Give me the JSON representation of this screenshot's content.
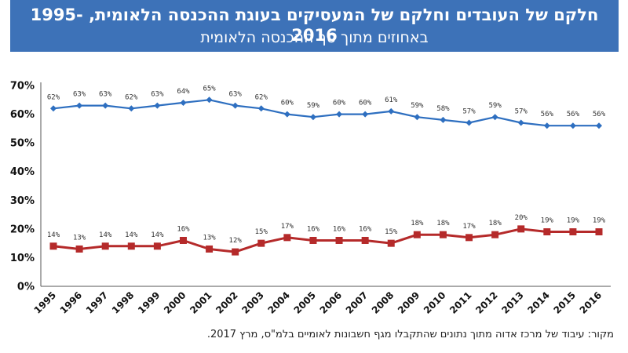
{
  "header": {
    "title": "חלקם של העובדים וחלקם של המעסיקים בעוגת ההכנסה הלאומית, 1995-2016",
    "subtitle": "באחוזים מתוך סך ההכנסה הלאומית"
  },
  "source": "מקור: עיבוד של מרכז אדוה מתוך נתונים שהתקבלו מגף חשבונות לאומיים בלמ\"ס, מרץ 2017.",
  "colors": {
    "banner": "#3d72b8",
    "blue_series": "#2e6fc0",
    "red_series": "#b52a2a"
  },
  "chart_data": {
    "type": "line",
    "title": "",
    "xlabel": "",
    "ylabel": "",
    "ylim": [
      0,
      70
    ],
    "yticks": [
      "0%",
      "10%",
      "20%",
      "30%",
      "40%",
      "50%",
      "60%",
      "70%"
    ],
    "grid": false,
    "legend": "none",
    "categories": [
      "1995",
      "1996",
      "1997",
      "1998",
      "1999",
      "2000",
      "2001",
      "2002",
      "2003",
      "2004",
      "2005",
      "2006",
      "2007",
      "2008",
      "2009",
      "2010",
      "2011",
      "2012",
      "2013",
      "2014",
      "2015",
      "2016"
    ],
    "series": [
      {
        "values": [
          62,
          63,
          63,
          62,
          63,
          64,
          65,
          63,
          62,
          60,
          59,
          60,
          60,
          61,
          59,
          58,
          57,
          59,
          57,
          56,
          56,
          56
        ],
        "labels": [
          "62%",
          "63%",
          "63%",
          "62%",
          "63%",
          "64%",
          "65%",
          "63%",
          "62%",
          "60%",
          "59%",
          "60%",
          "60%",
          "61%",
          "59%",
          "58%",
          "57%",
          "59%",
          "57%",
          "56%",
          "56%",
          "56%"
        ],
        "color": "#2e6fc0",
        "marker": "diamond"
      },
      {
        "values": [
          14,
          13,
          14,
          14,
          14,
          16,
          13,
          12,
          15,
          17,
          16,
          16,
          16,
          15,
          18,
          18,
          17,
          18,
          20,
          19,
          19,
          19
        ],
        "labels": [
          "14%",
          "13%",
          "14%",
          "14%",
          "14%",
          "16%",
          "13%",
          "12%",
          "15%",
          "17%",
          "16%",
          "16%",
          "16%",
          "15%",
          "18%",
          "18%",
          "17%",
          "18%",
          "20%",
          "19%",
          "19%",
          "19%"
        ],
        "color": "#b52a2a",
        "marker": "square"
      }
    ]
  }
}
